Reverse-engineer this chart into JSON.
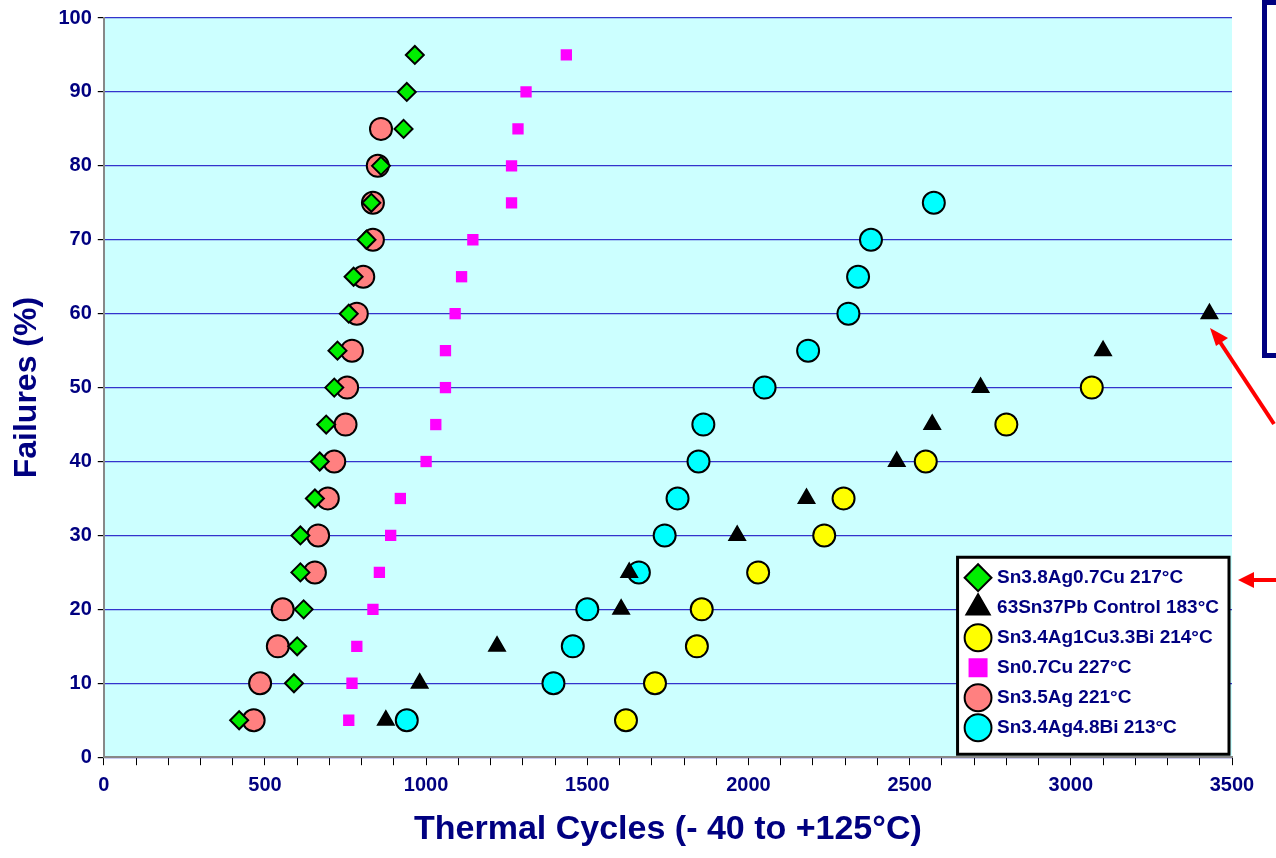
{
  "chart_data": {
    "type": "scatter",
    "xlabel": "Thermal Cycles (- 40 to +125°C)",
    "ylabel": "Failures (%)",
    "xlim": [
      0,
      3500
    ],
    "ylim": [
      0,
      100
    ],
    "xticks": [
      0,
      {
        "value": 100,
        "label": null
      },
      {
        "value": 200,
        "label": null
      },
      {
        "value": 300,
        "label": null
      },
      {
        "value": 400,
        "label": null
      },
      500,
      {
        "value": 600,
        "label": null
      },
      {
        "value": 700,
        "label": null
      },
      {
        "value": 800,
        "label": null
      },
      {
        "value": 900,
        "label": null
      },
      1000,
      {
        "value": 1100,
        "label": null
      },
      {
        "value": 1200,
        "label": null
      },
      {
        "value": 1300,
        "label": null
      },
      {
        "value": 1400,
        "label": null
      },
      1500,
      {
        "value": 1600,
        "label": null
      },
      {
        "value": 1700,
        "label": null
      },
      {
        "value": 1800,
        "label": null
      },
      {
        "value": 1900,
        "label": null
      },
      2000,
      {
        "value": 2100,
        "label": null
      },
      {
        "value": 2200,
        "label": null
      },
      {
        "value": 2300,
        "label": null
      },
      {
        "value": 2400,
        "label": null
      },
      2500,
      {
        "value": 2600,
        "label": null
      },
      {
        "value": 2700,
        "label": null
      },
      {
        "value": 2800,
        "label": null
      },
      {
        "value": 2900,
        "label": null
      },
      3000,
      {
        "value": 3100,
        "label": null
      },
      {
        "value": 3200,
        "label": null
      },
      {
        "value": 3300,
        "label": null
      },
      {
        "value": 3400,
        "label": null
      },
      3500
    ],
    "yticks": [
      0,
      10,
      20,
      30,
      40,
      50,
      60,
      70,
      80,
      90,
      100
    ],
    "grid": "y",
    "legend": "bottom right",
    "series": [
      {
        "name": "Sn3.8Ag0.7Cu 217°C",
        "color": "#00ee00",
        "marker": "diamond",
        "x": [
          420,
          590,
          600,
          620,
          610,
          610,
          655,
          670,
          690,
          715,
          725,
          760,
          775,
          815,
          830,
          860,
          930,
          940,
          965
        ],
        "values": [
          5,
          10,
          15,
          20,
          25,
          30,
          35,
          40,
          45,
          50,
          55,
          60,
          65,
          70,
          75,
          80,
          85,
          90,
          95
        ]
      },
      {
        "name": "63Sn37Pb Control 183°C",
        "color": "#000000",
        "marker": "triangle",
        "x": [
          875,
          980,
          1220,
          1605,
          1630,
          1965,
          2180,
          2460,
          2570,
          2720,
          3100,
          3430
        ],
        "values": [
          5,
          10,
          15,
          20,
          25,
          30,
          35,
          40,
          45,
          50,
          55,
          60
        ]
      },
      {
        "name": "Sn3.4Ag1Cu3.3Bi 214°C",
        "color": "#ffff00",
        "marker": "circle",
        "x": [
          1620,
          1710,
          1840,
          1855,
          2030,
          2235,
          2295,
          2550,
          2800,
          3065
        ],
        "values": [
          5,
          10,
          15,
          20,
          25,
          30,
          35,
          40,
          45,
          50
        ]
      },
      {
        "name": "Sn0.7Cu 227°C",
        "color": "#ff00ff",
        "marker": "square",
        "x": [
          760,
          770,
          785,
          835,
          855,
          890,
          920,
          1000,
          1030,
          1060,
          1060,
          1090,
          1110,
          1145,
          1265,
          1265,
          1285,
          1310,
          1435
        ],
        "values": [
          5,
          10,
          15,
          20,
          25,
          30,
          35,
          40,
          45,
          50,
          55,
          60,
          65,
          70,
          75,
          80,
          85,
          90,
          95
        ]
      },
      {
        "name": "Sn3.5Ag 221°C",
        "color": "#ff8080",
        "marker": "circle",
        "x": [
          465,
          485,
          540,
          555,
          655,
          665,
          695,
          715,
          750,
          755,
          770,
          785,
          805,
          835,
          835,
          850,
          860
        ],
        "values": [
          5,
          10,
          15,
          20,
          25,
          30,
          35,
          40,
          45,
          50,
          55,
          60,
          65,
          70,
          75,
          80,
          85
        ]
      },
      {
        "name": "Sn3.4Ag4.8Bi 213°C",
        "color": "#00ffff",
        "marker": "circle",
        "x": [
          940,
          1395,
          1455,
          1500,
          1660,
          1740,
          1780,
          1845,
          1860,
          2050,
          2185,
          2310,
          2340,
          2380,
          2575
        ],
        "values": [
          5,
          10,
          15,
          20,
          25,
          30,
          35,
          40,
          45,
          50,
          55,
          60,
          65,
          70,
          75
        ]
      }
    ]
  }
}
